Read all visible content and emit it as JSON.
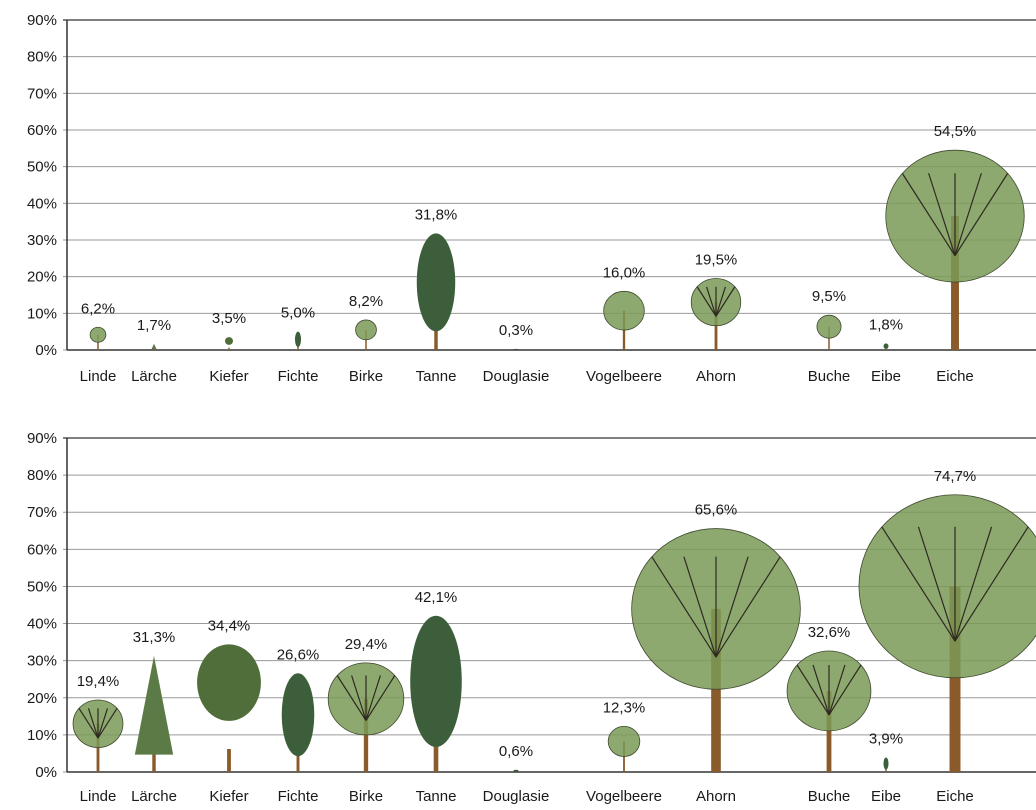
{
  "chart_data": [
    {
      "type": "bar",
      "categories": [
        "Linde",
        "Lärche",
        "Kiefer",
        "Fichte",
        "Birke",
        "Tanne",
        "Douglasie",
        "Vogelbeere",
        "Ahorn",
        "Buche",
        "Eibe",
        "Eiche"
      ],
      "values": [
        6.2,
        1.7,
        3.5,
        5.0,
        8.2,
        31.8,
        0.3,
        16.0,
        19.5,
        9.5,
        1.8,
        54.5
      ],
      "value_labels": [
        "6,2%",
        "1,7%",
        "3,5%",
        "5,0%",
        "8,2%",
        "31,8%",
        "0,3%",
        "16,0%",
        "19,5%",
        "9,5%",
        "1,8%",
        "54,5%"
      ],
      "ylim": [
        0,
        90
      ],
      "yticks": [
        "0%",
        "10%",
        "20%",
        "30%",
        "40%",
        "50%",
        "60%",
        "70%",
        "80%",
        "90%"
      ],
      "grid": true,
      "marks": "tree-illustrations"
    },
    {
      "type": "bar",
      "categories": [
        "Linde",
        "Lärche",
        "Kiefer",
        "Fichte",
        "Birke",
        "Tanne",
        "Douglasie",
        "Vogelbeere",
        "Ahorn",
        "Buche",
        "Eibe",
        "Eiche"
      ],
      "values": [
        19.4,
        31.3,
        34.4,
        26.6,
        29.4,
        42.1,
        0.6,
        12.3,
        65.6,
        32.6,
        3.9,
        74.7
      ],
      "value_labels": [
        "19,4%",
        "31,3%",
        "34,4%",
        "26,6%",
        "29,4%",
        "42,1%",
        "0,6%",
        "12,3%",
        "65,6%",
        "32,6%",
        "3,9%",
        "74,7%"
      ],
      "ylim": [
        0,
        90
      ],
      "yticks": [
        "0%",
        "10%",
        "20%",
        "30%",
        "40%",
        "50%",
        "60%",
        "70%",
        "80%",
        "90%"
      ],
      "grid": true,
      "marks": "tree-illustrations"
    }
  ],
  "colors": {
    "broadleaf_crown": "#7a9a56",
    "conifer_crown": "#3d5e3a",
    "trunk": "#8a5a2b",
    "grid": "#9a9a9a"
  }
}
